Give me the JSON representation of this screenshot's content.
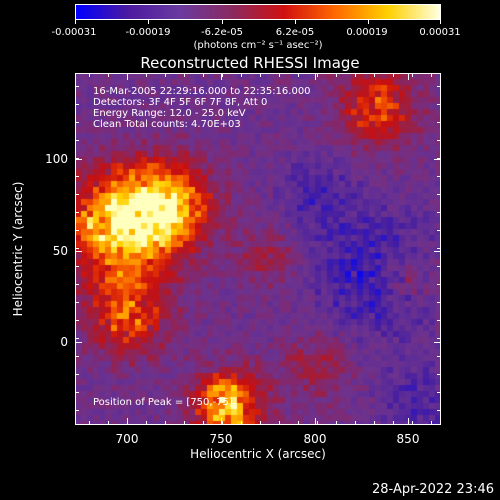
{
  "colorbar": {
    "labels": [
      "-0.00031",
      "-0.00019",
      "-6.2e-05",
      "6.2e-05",
      "0.00019",
      "0.00031"
    ],
    "units": "(photons cm⁻² s⁻¹ asec⁻²)",
    "colors": [
      "#0000ff",
      "#4b1aa0",
      "#6a3aa0",
      "#8a2a60",
      "#d01010",
      "#ff6a00",
      "#ffd000",
      "#ffffe0"
    ]
  },
  "plot": {
    "title": "Reconstructed RHESSI Image",
    "info_lines": [
      "16-Mar-2005 22:29:16.000 to 22:35:16.000",
      "Detectors: 3F 4F 5F 6F 7F 8F, Att 0",
      "Energy Range: 12.0 - 25.0 keV",
      "Clean    Total counts: 4.70E+03"
    ],
    "peak_text": "Position of Peak = [750,-75]"
  },
  "axes": {
    "xlabel": "Heliocentric X (arcsec)",
    "ylabel": "Heliocentric Y (arcsec)",
    "xticks": [
      "700",
      "750",
      "800",
      "850"
    ],
    "yticks": [
      "100",
      "50",
      "0"
    ],
    "xlim": [
      668,
      862
    ],
    "ylim": [
      -78,
      140
    ]
  },
  "timestamp": "28-Apr-2022 23:46"
}
